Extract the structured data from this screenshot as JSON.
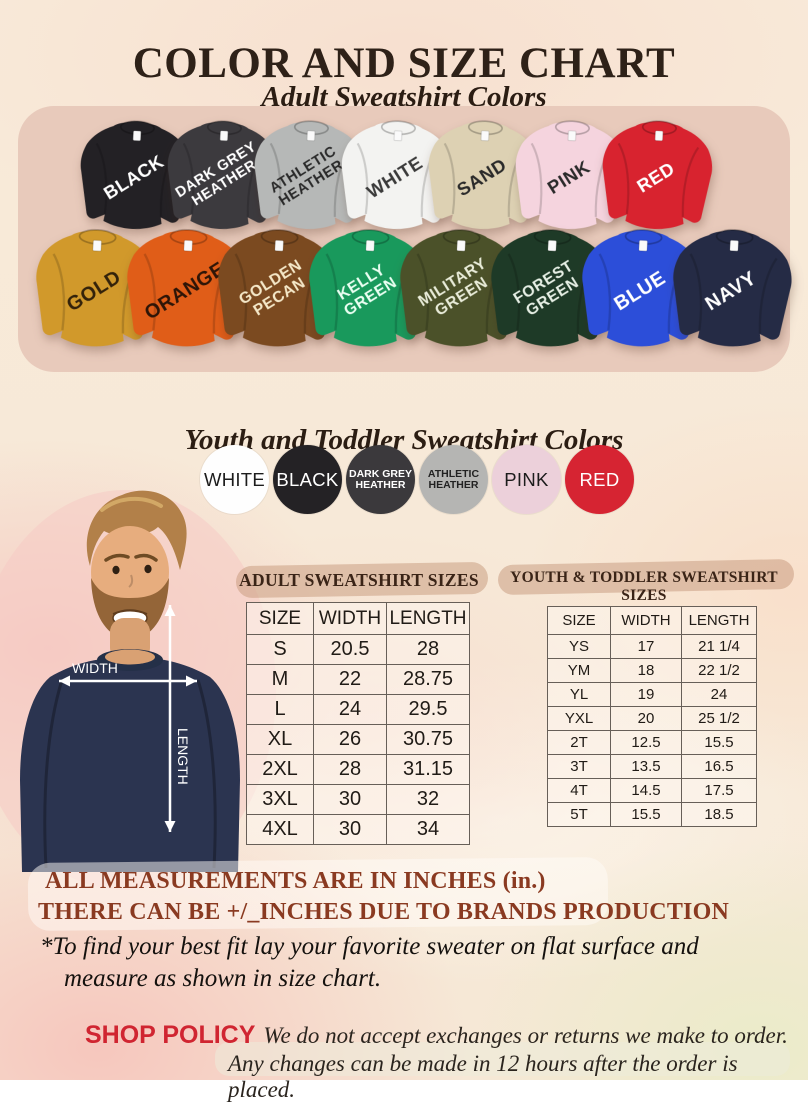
{
  "header": {
    "title": "COLOR AND SIZE CHART",
    "subtitle": "Adult Sweatshirt Colors"
  },
  "adult_colors": {
    "row1": [
      {
        "label": "BLACK",
        "lines": [
          "BLACK"
        ],
        "color": "#232125",
        "label_color": "#ffffff"
      },
      {
        "label": "DARK GREY HEATHER",
        "lines": [
          "DARK GREY",
          "HEATHER"
        ],
        "color": "#3c3a3e",
        "label_color": "#ffffff"
      },
      {
        "label": "ATHLETIC HEATHER",
        "lines": [
          "ATHLETIC",
          "HEATHER"
        ],
        "color": "#b6b8b7",
        "label_color": "#2a2a2a"
      },
      {
        "label": "WHITE",
        "lines": [
          "WHITE"
        ],
        "color": "#f3f3f1",
        "label_color": "#3a3a3a"
      },
      {
        "label": "SAND",
        "lines": [
          "SAND"
        ],
        "color": "#ddd1b3",
        "label_color": "#2a2a2a"
      },
      {
        "label": "PINK",
        "lines": [
          "PINK"
        ],
        "color": "#f5d4de",
        "label_color": "#2a2a2a"
      },
      {
        "label": "RED",
        "lines": [
          "RED"
        ],
        "color": "#d8232f",
        "label_color": "#ffffff"
      }
    ],
    "row2": [
      {
        "label": "GOLD",
        "lines": [
          "GOLD"
        ],
        "color": "#d1992b",
        "label_color": "#33220a"
      },
      {
        "label": "ORANGE",
        "lines": [
          "ORANGE"
        ],
        "color": "#e05d18",
        "label_color": "#2e1507"
      },
      {
        "label": "GOLDEN PECAN",
        "lines": [
          "GOLDEN",
          "PECAN"
        ],
        "color": "#7b4a20",
        "label_color": "#f5e8c8"
      },
      {
        "label": "KELLY GREEN",
        "lines": [
          "KELLY",
          "GREEN"
        ],
        "color": "#19995c",
        "label_color": "#eafff2"
      },
      {
        "label": "MILITARY GREEN",
        "lines": [
          "MILITARY",
          "GREEN"
        ],
        "color": "#4b5129",
        "label_color": "#e9ecd9"
      },
      {
        "label": "FOREST GREEN",
        "lines": [
          "FOREST",
          "GREEN"
        ],
        "color": "#1e3a27",
        "label_color": "#e6efe5"
      },
      {
        "label": "BLUE",
        "lines": [
          "BLUE"
        ],
        "color": "#2c4ed9",
        "label_color": "#ffffff"
      },
      {
        "label": "NAVY",
        "lines": [
          "NAVY"
        ],
        "color": "#252b45",
        "label_color": "#ffffff"
      }
    ]
  },
  "youth": {
    "heading": "Youth and Toddler Sweatshirt Colors",
    "colors": [
      {
        "label": "WHITE",
        "lines": [
          "WHITE"
        ],
        "color": "#fefefe",
        "label_color": "#1c1c1c"
      },
      {
        "label": "BLACK",
        "lines": [
          "BLACK"
        ],
        "color": "#242225",
        "label_color": "#ffffff"
      },
      {
        "label": "DARK GREY HEATHER",
        "lines": [
          "DARK GREY",
          "HEATHER"
        ],
        "color": "#3b393c",
        "label_color": "#ffffff"
      },
      {
        "label": "ATHLETIC HEATHER",
        "lines": [
          "ATHLETIC",
          "HEATHER"
        ],
        "color": "#b5b5b3",
        "label_color": "#222222"
      },
      {
        "label": "PINK",
        "lines": [
          "PINK"
        ],
        "color": "#ecd0da",
        "label_color": "#1c1c1c"
      },
      {
        "label": "RED",
        "lines": [
          "RED"
        ],
        "color": "#d62432",
        "label_color": "#ffffff"
      }
    ]
  },
  "diagram": {
    "width_label": "WIDTH",
    "length_label": "LENGTH"
  },
  "size_guide": {
    "adult": {
      "heading": "ADULT SWEATSHIRT SIZES",
      "columns": [
        "SIZE",
        "WIDTH",
        "LENGTH"
      ],
      "rows": [
        [
          "S",
          "20.5",
          "28"
        ],
        [
          "M",
          "22",
          "28.75"
        ],
        [
          "L",
          "24",
          "29.5"
        ],
        [
          "XL",
          "26",
          "30.75"
        ],
        [
          "2XL",
          "28",
          "31.15"
        ],
        [
          "3XL",
          "30",
          "32"
        ],
        [
          "4XL",
          "30",
          "34"
        ]
      ]
    },
    "youth": {
      "heading": "YOUTH & TODDLER SWEATSHIRT SIZES",
      "columns": [
        "SIZE",
        "WIDTH",
        "LENGTH"
      ],
      "rows": [
        [
          "YS",
          "17",
          "21 1/4"
        ],
        [
          "YM",
          "18",
          "22 1/2"
        ],
        [
          "YL",
          "19",
          "24"
        ],
        [
          "YXL",
          "20",
          "25 1/2"
        ],
        [
          "2T",
          "12.5",
          "15.5"
        ],
        [
          "3T",
          "13.5",
          "16.5"
        ],
        [
          "4T",
          "14.5",
          "17.5"
        ],
        [
          "5T",
          "15.5",
          "18.5"
        ]
      ]
    }
  },
  "notes": {
    "line1": "ALL MEASUREMENTS ARE IN INCHES (in.)",
    "line2": "THERE CAN BE +/_INCHES DUE TO BRANDS PRODUCTION",
    "line3": "*To find your best fit lay your favorite sweater on flat surface and",
    "line4": "measure as shown in size chart."
  },
  "policy": {
    "label": "SHOP POLICY",
    "line1": "We do not accept exchanges or returns we make to order.",
    "line2": "Any changes can be made in 12 hours after the order is placed."
  }
}
